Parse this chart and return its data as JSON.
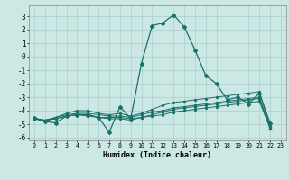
{
  "title": "",
  "xlabel": "Humidex (Indice chaleur)",
  "background_color": "#cce8e4",
  "grid_color": "#aacfcc",
  "line_color": "#1a7068",
  "xlim": [
    -0.5,
    23.5
  ],
  "ylim": [
    -6.2,
    3.8
  ],
  "x": [
    0,
    1,
    2,
    3,
    4,
    5,
    6,
    7,
    8,
    9,
    10,
    11,
    12,
    13,
    14,
    15,
    16,
    17,
    18,
    19,
    20,
    21,
    22,
    23
  ],
  "line1": [
    -4.5,
    -4.8,
    -4.9,
    -4.4,
    -4.3,
    -4.3,
    -4.5,
    -5.6,
    -3.7,
    -4.6,
    -0.5,
    2.3,
    2.5,
    3.1,
    2.2,
    0.5,
    -1.4,
    -2.0,
    -3.2,
    -3.0,
    -3.5,
    -2.7,
    -4.9,
    null
  ],
  "line2": [
    -4.6,
    -4.7,
    -4.6,
    -4.4,
    -4.3,
    -4.3,
    -4.5,
    -4.5,
    -4.5,
    -4.6,
    -4.5,
    -4.4,
    -4.3,
    -4.1,
    -4.0,
    -3.9,
    -3.8,
    -3.7,
    -3.6,
    -3.5,
    -3.4,
    -3.3,
    -5.3,
    null
  ],
  "line3": [
    -4.6,
    -4.7,
    -4.6,
    -4.4,
    -4.3,
    -4.4,
    -4.5,
    -4.6,
    -4.6,
    -4.7,
    -4.5,
    -4.3,
    -4.1,
    -3.9,
    -3.8,
    -3.7,
    -3.6,
    -3.5,
    -3.4,
    -3.3,
    -3.2,
    -3.1,
    -5.3,
    null
  ],
  "line4": [
    -4.6,
    -4.7,
    -4.5,
    -4.3,
    -4.2,
    -4.2,
    -4.3,
    -4.4,
    -4.4,
    -4.5,
    -4.3,
    -4.1,
    -4.0,
    -3.8,
    -3.7,
    -3.6,
    -3.5,
    -3.4,
    -3.3,
    -3.2,
    -3.1,
    -3.0,
    -5.2,
    null
  ],
  "line5": [
    -4.6,
    -4.8,
    -4.5,
    -4.2,
    -4.0,
    -4.0,
    -4.2,
    -4.3,
    -4.2,
    -4.4,
    -4.2,
    -3.9,
    -3.6,
    -3.4,
    -3.3,
    -3.2,
    -3.1,
    -3.0,
    -2.9,
    -2.8,
    -2.7,
    -2.6,
    -5.1,
    null
  ],
  "yticks": [
    -6,
    -5,
    -4,
    -3,
    -2,
    -1,
    0,
    1,
    2,
    3
  ],
  "xtick_labels": [
    "0",
    "1",
    "2",
    "3",
    "4",
    "5",
    "6",
    "7",
    "8",
    "9",
    "10",
    "11",
    "12",
    "13",
    "14",
    "15",
    "16",
    "17",
    "18",
    "19",
    "20",
    "21",
    "22",
    "23"
  ]
}
